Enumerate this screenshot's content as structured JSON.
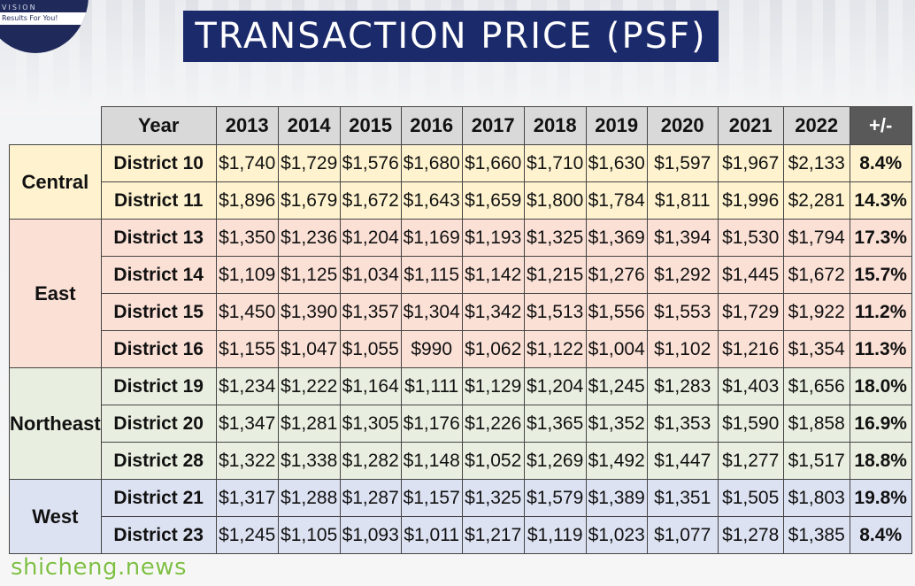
{
  "logo": {
    "brand": "VISION",
    "tagline": "Results For You!"
  },
  "title": "TRANSACTION PRICE (PSF)",
  "table": {
    "header": {
      "label": "Year",
      "years": [
        "2013",
        "2014",
        "2015",
        "2016",
        "2017",
        "2018",
        "2019",
        "2020",
        "2021",
        "2022"
      ],
      "change": "+/-"
    },
    "regions": [
      {
        "name": "Central",
        "color": "#fff3cf",
        "rows": [
          {
            "district": "District 10",
            "values": [
              "$1,740",
              "$1,729",
              "$1,576",
              "$1,680",
              "$1,660",
              "$1,710",
              "$1,630",
              "$1,597",
              "$1,967",
              "$2,133"
            ],
            "change": "8.4%"
          },
          {
            "district": "District 11",
            "values": [
              "$1,896",
              "$1,679",
              "$1,672",
              "$1,643",
              "$1,659",
              "$1,800",
              "$1,784",
              "$1,811",
              "$1,996",
              "$2,281"
            ],
            "change": "14.3%"
          }
        ]
      },
      {
        "name": "East",
        "color": "#fbe0d6",
        "rows": [
          {
            "district": "District 13",
            "values": [
              "$1,350",
              "$1,236",
              "$1,204",
              "$1,169",
              "$1,193",
              "$1,325",
              "$1,369",
              "$1,394",
              "$1,530",
              "$1,794"
            ],
            "change": "17.3%"
          },
          {
            "district": "District 14",
            "values": [
              "$1,109",
              "$1,125",
              "$1,034",
              "$1,115",
              "$1,142",
              "$1,215",
              "$1,276",
              "$1,292",
              "$1,445",
              "$1,672"
            ],
            "change": "15.7%"
          },
          {
            "district": "District 15",
            "values": [
              "$1,450",
              "$1,390",
              "$1,357",
              "$1,304",
              "$1,342",
              "$1,513",
              "$1,556",
              "$1,553",
              "$1,729",
              "$1,922"
            ],
            "change": "11.2%"
          },
          {
            "district": "District 16",
            "values": [
              "$1,155",
              "$1,047",
              "$1,055",
              "$990",
              "$1,062",
              "$1,122",
              "$1,004",
              "$1,102",
              "$1,216",
              "$1,354"
            ],
            "change": "11.3%"
          }
        ]
      },
      {
        "name": "Northeast",
        "color": "#e8efe0",
        "rows": [
          {
            "district": "District 19",
            "values": [
              "$1,234",
              "$1,222",
              "$1,164",
              "$1,111",
              "$1,129",
              "$1,204",
              "$1,245",
              "$1,283",
              "$1,403",
              "$1,656"
            ],
            "change": "18.0%"
          },
          {
            "district": "District 20",
            "values": [
              "$1,347",
              "$1,281",
              "$1,305",
              "$1,176",
              "$1,226",
              "$1,365",
              "$1,352",
              "$1,353",
              "$1,590",
              "$1,858"
            ],
            "change": "16.9%"
          },
          {
            "district": "District 28",
            "values": [
              "$1,322",
              "$1,338",
              "$1,282",
              "$1,148",
              "$1,052",
              "$1,269",
              "$1,492",
              "$1,447",
              "$1,277",
              "$1,517"
            ],
            "change": "18.8%"
          }
        ]
      },
      {
        "name": "West",
        "color": "#dde2f2",
        "rows": [
          {
            "district": "District 21",
            "values": [
              "$1,317",
              "$1,288",
              "$1,287",
              "$1,157",
              "$1,325",
              "$1,579",
              "$1,389",
              "$1,351",
              "$1,505",
              "$1,803"
            ],
            "change": "19.8%"
          },
          {
            "district": "District 23",
            "values": [
              "$1,245",
              "$1,105",
              "$1,093",
              "$1,011",
              "$1,217",
              "$1,119",
              "$1,023",
              "$1,077",
              "$1,278",
              "$1,385"
            ],
            "change": "8.4%"
          }
        ]
      }
    ]
  },
  "watermark": "shicheng.news"
}
